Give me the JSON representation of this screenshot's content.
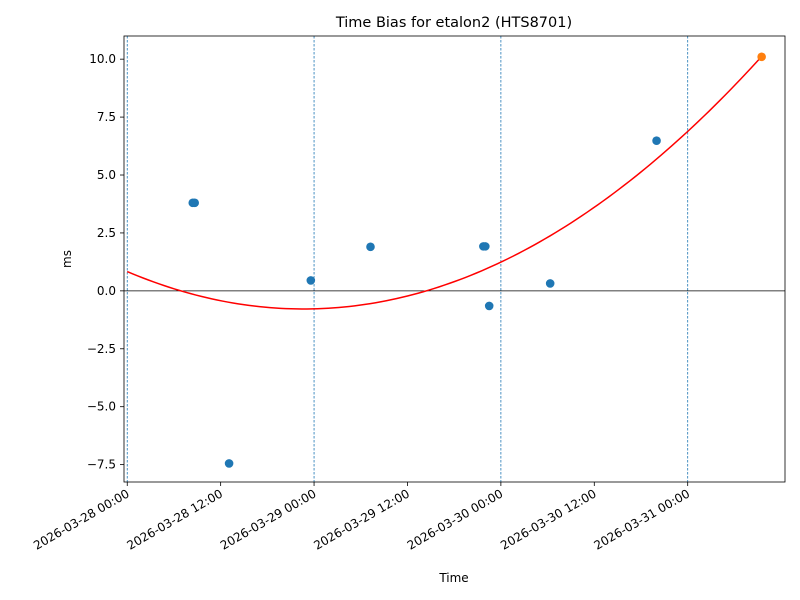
{
  "chart_data": {
    "type": "scatter",
    "title": "Time Bias for etalon2 (HTS8701)",
    "xlabel": "Time",
    "ylabel": "ms",
    "xlim": [
      "2026-03-27 23:35",
      "2026-03-31 12:30"
    ],
    "ylim": [
      -8.25,
      11.0
    ],
    "x_ticks": [
      "2026-03-28 00:00",
      "2026-03-28 12:00",
      "2026-03-29 00:00",
      "2026-03-29 12:00",
      "2026-03-30 00:00",
      "2026-03-30 12:00",
      "2026-03-31 00:00"
    ],
    "x_tick_labels": [
      "2026-03-28 00:00",
      "2026-03-28 12:00",
      "2026-03-29 00:00",
      "2026-03-29 12:00",
      "2026-03-30 00:00",
      "2026-03-30 12:00",
      "2026-03-31 00:00"
    ],
    "y_ticks": [
      -7.5,
      -5.0,
      -2.5,
      0.0,
      2.5,
      5.0,
      7.5,
      10.0
    ],
    "y_tick_labels": [
      "−7.5",
      "−5.0",
      "−2.5",
      "0.0",
      "2.5",
      "5.0",
      "7.5",
      "10.0"
    ],
    "vlines": [
      "2026-03-28 00:00",
      "2026-03-29 00:00",
      "2026-03-30 00:00",
      "2026-03-31 00:00"
    ],
    "hline": 0,
    "grid": false,
    "series": [
      {
        "kind": "scatter",
        "color": "#1f77b4",
        "points": [
          {
            "x": "2026-03-28 08:25",
            "y": 3.8
          },
          {
            "x": "2026-03-28 08:40",
            "y": 3.8
          },
          {
            "x": "2026-03-28 13:05",
            "y": -7.45
          },
          {
            "x": "2026-03-28 23:35",
            "y": 0.45
          },
          {
            "x": "2026-03-29 07:15",
            "y": 1.9
          },
          {
            "x": "2026-03-29 21:45",
            "y": 1.92
          },
          {
            "x": "2026-03-29 22:00",
            "y": 1.92
          },
          {
            "x": "2026-03-29 22:30",
            "y": -0.65
          },
          {
            "x": "2026-03-30 06:20",
            "y": 0.32
          },
          {
            "x": "2026-03-30 20:00",
            "y": 6.48
          }
        ]
      },
      {
        "kind": "scatter",
        "color": "#ff7f0e",
        "points": [
          {
            "x": "2026-03-31 09:30",
            "y": 10.1
          }
        ]
      },
      {
        "kind": "line",
        "color": "#ff0000",
        "points": [
          {
            "x": "2026-03-28 00:00",
            "y": 0.88
          },
          {
            "x": "2026-03-29 00:00",
            "y": -0.98
          },
          {
            "x": "2026-03-29 12:00",
            "y": -0.05
          },
          {
            "x": "2026-03-31 09:30",
            "y": 10.1
          }
        ]
      }
    ]
  }
}
